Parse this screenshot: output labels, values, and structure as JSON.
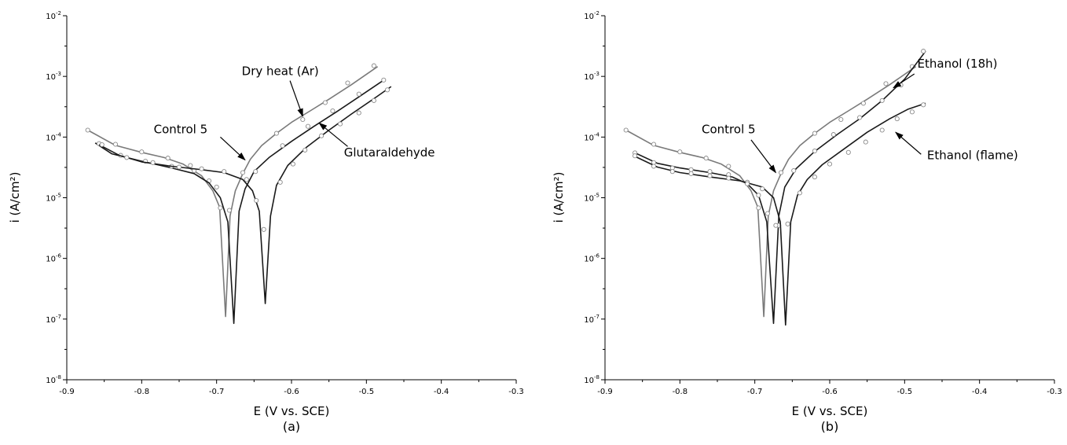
{
  "chart_data": [
    {
      "type": "line",
      "panel_label": "(a)",
      "xlabel": "E (V vs. SCE)",
      "ylabel": "i (A/cm²)",
      "xlim": [
        -0.9,
        -0.3
      ],
      "ylim": [
        1e-08,
        0.01
      ],
      "y_scale": "log",
      "x_ticks": [
        "-0.9",
        "-0.8",
        "-0.7",
        "-0.6",
        "-0.5",
        "-0.4",
        "-0.3"
      ],
      "y_ticks": [
        {
          "base": "10",
          "exp": "-8"
        },
        {
          "base": "10",
          "exp": "-7"
        },
        {
          "base": "10",
          "exp": "-6"
        },
        {
          "base": "10",
          "exp": "-5"
        },
        {
          "base": "10",
          "exp": "-4"
        },
        {
          "base": "10",
          "exp": "-3"
        },
        {
          "base": "10",
          "exp": "-2"
        }
      ],
      "grid": false,
      "series": [
        {
          "name": "Control 5",
          "color": "#7a7a7a",
          "ecorr": -0.688,
          "min_i": 1.1e-07,
          "points": [
            [
              -0.872,
              0.00013
            ],
            [
              -0.835,
              7.3e-05
            ],
            [
              -0.8,
              5.6e-05
            ],
            [
              -0.77,
              4.6e-05
            ],
            [
              -0.745,
              3.6e-05
            ],
            [
              -0.72,
              2.3e-05
            ],
            [
              -0.705,
              1.3e-05
            ],
            [
              -0.696,
              7e-06
            ],
            [
              -0.688,
              1.1e-07
            ],
            [
              -0.682,
              5e-06
            ],
            [
              -0.675,
              1.3e-05
            ],
            [
              -0.665,
              2.5e-05
            ],
            [
              -0.655,
              4.3e-05
            ],
            [
              -0.64,
              7.2e-05
            ],
            [
              -0.62,
              0.000115
            ],
            [
              -0.6,
              0.000175
            ],
            [
              -0.575,
              0.00027
            ],
            [
              -0.55,
              0.00042
            ],
            [
              -0.52,
              0.00073
            ],
            [
              -0.485,
              0.00145
            ]
          ],
          "markers": [
            [
              -0.872,
              0.00013
            ],
            [
              -0.835,
              7.6e-05
            ],
            [
              -0.8,
              5.7e-05
            ],
            [
              -0.765,
              4.5e-05
            ],
            [
              -0.735,
              3.4e-05
            ],
            [
              -0.71,
              1.9e-05
            ],
            [
              -0.695,
              6.8e-06
            ],
            [
              -0.665,
              2.6e-05
            ],
            [
              -0.62,
              0.000115
            ],
            [
              -0.585,
              0.000195
            ],
            [
              -0.555,
              0.00037
            ],
            [
              -0.525,
              0.00078
            ],
            [
              -0.49,
              0.0015
            ]
          ]
        },
        {
          "name": "Dry heat (Ar)",
          "color": "#1a1a1a",
          "ecorr": -0.677,
          "min_i": 8.5e-08,
          "points": [
            [
              -0.862,
              8e-05
            ],
            [
              -0.84,
              5.3e-05
            ],
            [
              -0.8,
              4e-05
            ],
            [
              -0.76,
              3.1e-05
            ],
            [
              -0.73,
              2.5e-05
            ],
            [
              -0.71,
              1.75e-05
            ],
            [
              -0.695,
              1e-05
            ],
            [
              -0.685,
              4e-06
            ],
            [
              -0.677,
              8.5e-08
            ],
            [
              -0.67,
              6e-06
            ],
            [
              -0.662,
              1.4e-05
            ],
            [
              -0.65,
              2.7e-05
            ],
            [
              -0.63,
              4.6e-05
            ],
            [
              -0.6,
              8.5e-05
            ],
            [
              -0.57,
              0.00015
            ],
            [
              -0.54,
              0.00026
            ],
            [
              -0.51,
              0.00046
            ],
            [
              -0.475,
              0.0009
            ]
          ],
          "markers": [
            [
              -0.857,
              7.8e-05
            ],
            [
              -0.828,
              5e-05
            ],
            [
              -0.795,
              4e-05
            ],
            [
              -0.76,
              3.3e-05
            ],
            [
              -0.73,
              2.8e-05
            ],
            [
              -0.7,
              1.5e-05
            ],
            [
              -0.683,
              6.2e-06
            ],
            [
              -0.648,
              2.7e-05
            ],
            [
              -0.612,
              7.2e-05
            ],
            [
              -0.578,
              0.00015
            ],
            [
              -0.545,
              0.00027
            ],
            [
              -0.51,
              0.00051
            ],
            [
              -0.477,
              0.00087
            ]
          ]
        },
        {
          "name": "Glutaraldehyde",
          "color": "#1a1a1a",
          "ecorr": -0.635,
          "min_i": 1.8e-07,
          "points": [
            [
              -0.857,
              7.5e-05
            ],
            [
              -0.83,
              5e-05
            ],
            [
              -0.8,
              3.9e-05
            ],
            [
              -0.76,
              3.3e-05
            ],
            [
              -0.72,
              2.9e-05
            ],
            [
              -0.69,
              2.6e-05
            ],
            [
              -0.665,
              2e-05
            ],
            [
              -0.652,
              1.3e-05
            ],
            [
              -0.643,
              6e-06
            ],
            [
              -0.635,
              1.8e-07
            ],
            [
              -0.628,
              5e-06
            ],
            [
              -0.62,
              1.6e-05
            ],
            [
              -0.605,
              3.4e-05
            ],
            [
              -0.58,
              6.8e-05
            ],
            [
              -0.55,
              0.00013
            ],
            [
              -0.52,
              0.00024
            ],
            [
              -0.49,
              0.00043
            ],
            [
              -0.467,
              0.00068
            ]
          ],
          "markers": [
            [
              -0.853,
              7.5e-05
            ],
            [
              -0.82,
              4.6e-05
            ],
            [
              -0.785,
              3.8e-05
            ],
            [
              -0.75,
              3.2e-05
            ],
            [
              -0.72,
              3e-05
            ],
            [
              -0.69,
              2.7e-05
            ],
            [
              -0.66,
              2e-05
            ],
            [
              -0.647,
              9e-06
            ],
            [
              -0.637,
              3e-06
            ],
            [
              -0.615,
              1.8e-05
            ],
            [
              -0.598,
              3.6e-05
            ],
            [
              -0.582,
              6.1e-05
            ],
            [
              -0.56,
              0.000105
            ],
            [
              -0.535,
              0.000165
            ],
            [
              -0.51,
              0.00025
            ],
            [
              -0.49,
              0.0004
            ],
            [
              -0.472,
              0.0006
            ]
          ]
        }
      ],
      "annotations": [
        {
          "text": "Control 5",
          "label_x": -0.748,
          "label_y": 0.000115,
          "anchor": "middle",
          "arrow_from": [
            -0.695,
            0.0001
          ],
          "arrow_to": [
            -0.662,
            4.2e-05
          ]
        },
        {
          "text": "Dry heat (Ar)",
          "label_x": -0.615,
          "label_y": 0.00105,
          "anchor": "middle",
          "arrow_from": [
            -0.602,
            0.00085
          ],
          "arrow_to": [
            -0.585,
            0.00022
          ]
        },
        {
          "text": "Glutaraldehyde",
          "label_x": -0.53,
          "label_y": 4.8e-05,
          "anchor": "start",
          "arrow_from": [
            -0.525,
            7e-05
          ],
          "arrow_to": [
            -0.563,
            0.00017
          ]
        }
      ]
    },
    {
      "type": "line",
      "panel_label": "(b)",
      "xlabel": "E (V vs. SCE)",
      "ylabel": "i (A/cm²)",
      "xlim": [
        -0.9,
        -0.3
      ],
      "ylim": [
        1e-08,
        0.01
      ],
      "y_scale": "log",
      "x_ticks": [
        "-0.9",
        "-0.8",
        "-0.7",
        "-0.6",
        "-0.5",
        "-0.4",
        "-0.3"
      ],
      "y_ticks": [
        {
          "base": "10",
          "exp": "-8"
        },
        {
          "base": "10",
          "exp": "-7"
        },
        {
          "base": "10",
          "exp": "-6"
        },
        {
          "base": "10",
          "exp": "-5"
        },
        {
          "base": "10",
          "exp": "-4"
        },
        {
          "base": "10",
          "exp": "-3"
        },
        {
          "base": "10",
          "exp": "-2"
        }
      ],
      "grid": false,
      "series": [
        {
          "name": "Control 5",
          "color": "#7a7a7a",
          "ecorr": -0.688,
          "min_i": 1.1e-07,
          "points": [
            [
              -0.872,
              0.00013
            ],
            [
              -0.835,
              7.3e-05
            ],
            [
              -0.8,
              5.6e-05
            ],
            [
              -0.77,
              4.6e-05
            ],
            [
              -0.745,
              3.6e-05
            ],
            [
              -0.72,
              2.3e-05
            ],
            [
              -0.705,
              1.3e-05
            ],
            [
              -0.696,
              7e-06
            ],
            [
              -0.688,
              1.1e-07
            ],
            [
              -0.682,
              5e-06
            ],
            [
              -0.675,
              1.3e-05
            ],
            [
              -0.665,
              2.5e-05
            ],
            [
              -0.655,
              4.3e-05
            ],
            [
              -0.64,
              7.2e-05
            ],
            [
              -0.62,
              0.000115
            ],
            [
              -0.6,
              0.000175
            ],
            [
              -0.575,
              0.00027
            ],
            [
              -0.55,
              0.00042
            ],
            [
              -0.52,
              0.00073
            ],
            [
              -0.485,
              0.00145
            ]
          ],
          "markers": [
            [
              -0.872,
              0.00013
            ],
            [
              -0.835,
              7.6e-05
            ],
            [
              -0.8,
              5.7e-05
            ],
            [
              -0.765,
              4.5e-05
            ],
            [
              -0.735,
              3.3e-05
            ],
            [
              -0.71,
              1.8e-05
            ],
            [
              -0.695,
              6.8e-06
            ],
            [
              -0.665,
              2.6e-05
            ],
            [
              -0.62,
              0.000115
            ],
            [
              -0.585,
              0.000195
            ],
            [
              -0.555,
              0.00036
            ],
            [
              -0.525,
              0.00076
            ],
            [
              -0.49,
              0.00145
            ]
          ]
        },
        {
          "name": "Ethanol (18h)",
          "color": "#1a1a1a",
          "ecorr": -0.675,
          "min_i": 8.5e-08,
          "points": [
            [
              -0.86,
              5.5e-05
            ],
            [
              -0.83,
              3.7e-05
            ],
            [
              -0.8,
              3.1e-05
            ],
            [
              -0.76,
              2.6e-05
            ],
            [
              -0.73,
              2.2e-05
            ],
            [
              -0.71,
              1.7e-05
            ],
            [
              -0.695,
              1.1e-05
            ],
            [
              -0.684,
              4e-06
            ],
            [
              -0.675,
              8.5e-08
            ],
            [
              -0.668,
              5e-06
            ],
            [
              -0.66,
              1.5e-05
            ],
            [
              -0.645,
              3e-05
            ],
            [
              -0.62,
              5.8e-05
            ],
            [
              -0.59,
              0.00011
            ],
            [
              -0.56,
              0.0002
            ],
            [
              -0.53,
              0.0004
            ],
            [
              -0.5,
              0.0009
            ],
            [
              -0.472,
              0.0026
            ]
          ],
          "markers": [
            [
              -0.86,
              5.5e-05
            ],
            [
              -0.835,
              3.8e-05
            ],
            [
              -0.81,
              3.1e-05
            ],
            [
              -0.785,
              2.9e-05
            ],
            [
              -0.76,
              2.7e-05
            ],
            [
              -0.735,
              2.4e-05
            ],
            [
              -0.71,
              1.8e-05
            ],
            [
              -0.695,
              1.1e-05
            ],
            [
              -0.683,
              5.5e-06
            ],
            [
              -0.668,
              3.5e-06
            ],
            [
              -0.648,
              2.8e-05
            ],
            [
              -0.62,
              5.9e-05
            ],
            [
              -0.595,
              0.00011
            ],
            [
              -0.56,
              0.00021
            ],
            [
              -0.53,
              0.0004
            ],
            [
              -0.505,
              0.00072
            ],
            [
              -0.475,
              0.0026
            ]
          ]
        },
        {
          "name": "Ethanol (flame)",
          "color": "#1a1a1a",
          "ecorr": -0.659,
          "min_i": 8e-08,
          "points": [
            [
              -0.86,
              4.8e-05
            ],
            [
              -0.83,
              3.2e-05
            ],
            [
              -0.8,
              2.6e-05
            ],
            [
              -0.76,
              2.2e-05
            ],
            [
              -0.72,
              1.9e-05
            ],
            [
              -0.69,
              1.5e-05
            ],
            [
              -0.675,
              1e-05
            ],
            [
              -0.666,
              4e-06
            ],
            [
              -0.659,
              8e-08
            ],
            [
              -0.652,
              4e-06
            ],
            [
              -0.643,
              1.1e-05
            ],
            [
              -0.63,
              2e-05
            ],
            [
              -0.61,
              3.5e-05
            ],
            [
              -0.58,
              6.5e-05
            ],
            [
              -0.55,
              0.00012
            ],
            [
              -0.52,
              0.0002
            ],
            [
              -0.495,
              0.00029
            ],
            [
              -0.472,
              0.00036
            ]
          ],
          "markers": [
            [
              -0.86,
              4.9e-05
            ],
            [
              -0.835,
              3.3e-05
            ],
            [
              -0.81,
              2.7e-05
            ],
            [
              -0.785,
              2.5e-05
            ],
            [
              -0.76,
              2.3e-05
            ],
            [
              -0.735,
              2.1e-05
            ],
            [
              -0.71,
              1.7e-05
            ],
            [
              -0.69,
              1.4e-05
            ],
            [
              -0.672,
              3.5e-06
            ],
            [
              -0.656,
              3.7e-06
            ],
            [
              -0.64,
              1.2e-05
            ],
            [
              -0.62,
              2.2e-05
            ],
            [
              -0.6,
              3.6e-05
            ],
            [
              -0.575,
              5.6e-05
            ],
            [
              -0.552,
              8.3e-05
            ],
            [
              -0.53,
              0.00013
            ],
            [
              -0.51,
              0.0002
            ],
            [
              -0.49,
              0.00026
            ],
            [
              -0.475,
              0.00034
            ]
          ]
        }
      ],
      "annotations": [
        {
          "text": "Control 5",
          "label_x": -0.735,
          "label_y": 0.000115,
          "anchor": "middle",
          "arrow_from": [
            -0.705,
            9e-05
          ],
          "arrow_to": [
            -0.672,
            2.6e-05
          ]
        },
        {
          "text": "Ethanol (18h)",
          "label_x": -0.483,
          "label_y": 0.0014,
          "anchor": "start",
          "arrow_from": [
            -0.487,
            0.0011
          ],
          "arrow_to": [
            -0.515,
            0.00065
          ]
        },
        {
          "text": "Ethanol (flame)",
          "label_x": -0.47,
          "label_y": 4.3e-05,
          "anchor": "start",
          "arrow_from": [
            -0.478,
            5.2e-05
          ],
          "arrow_to": [
            -0.512,
            0.00012
          ]
        }
      ]
    }
  ]
}
